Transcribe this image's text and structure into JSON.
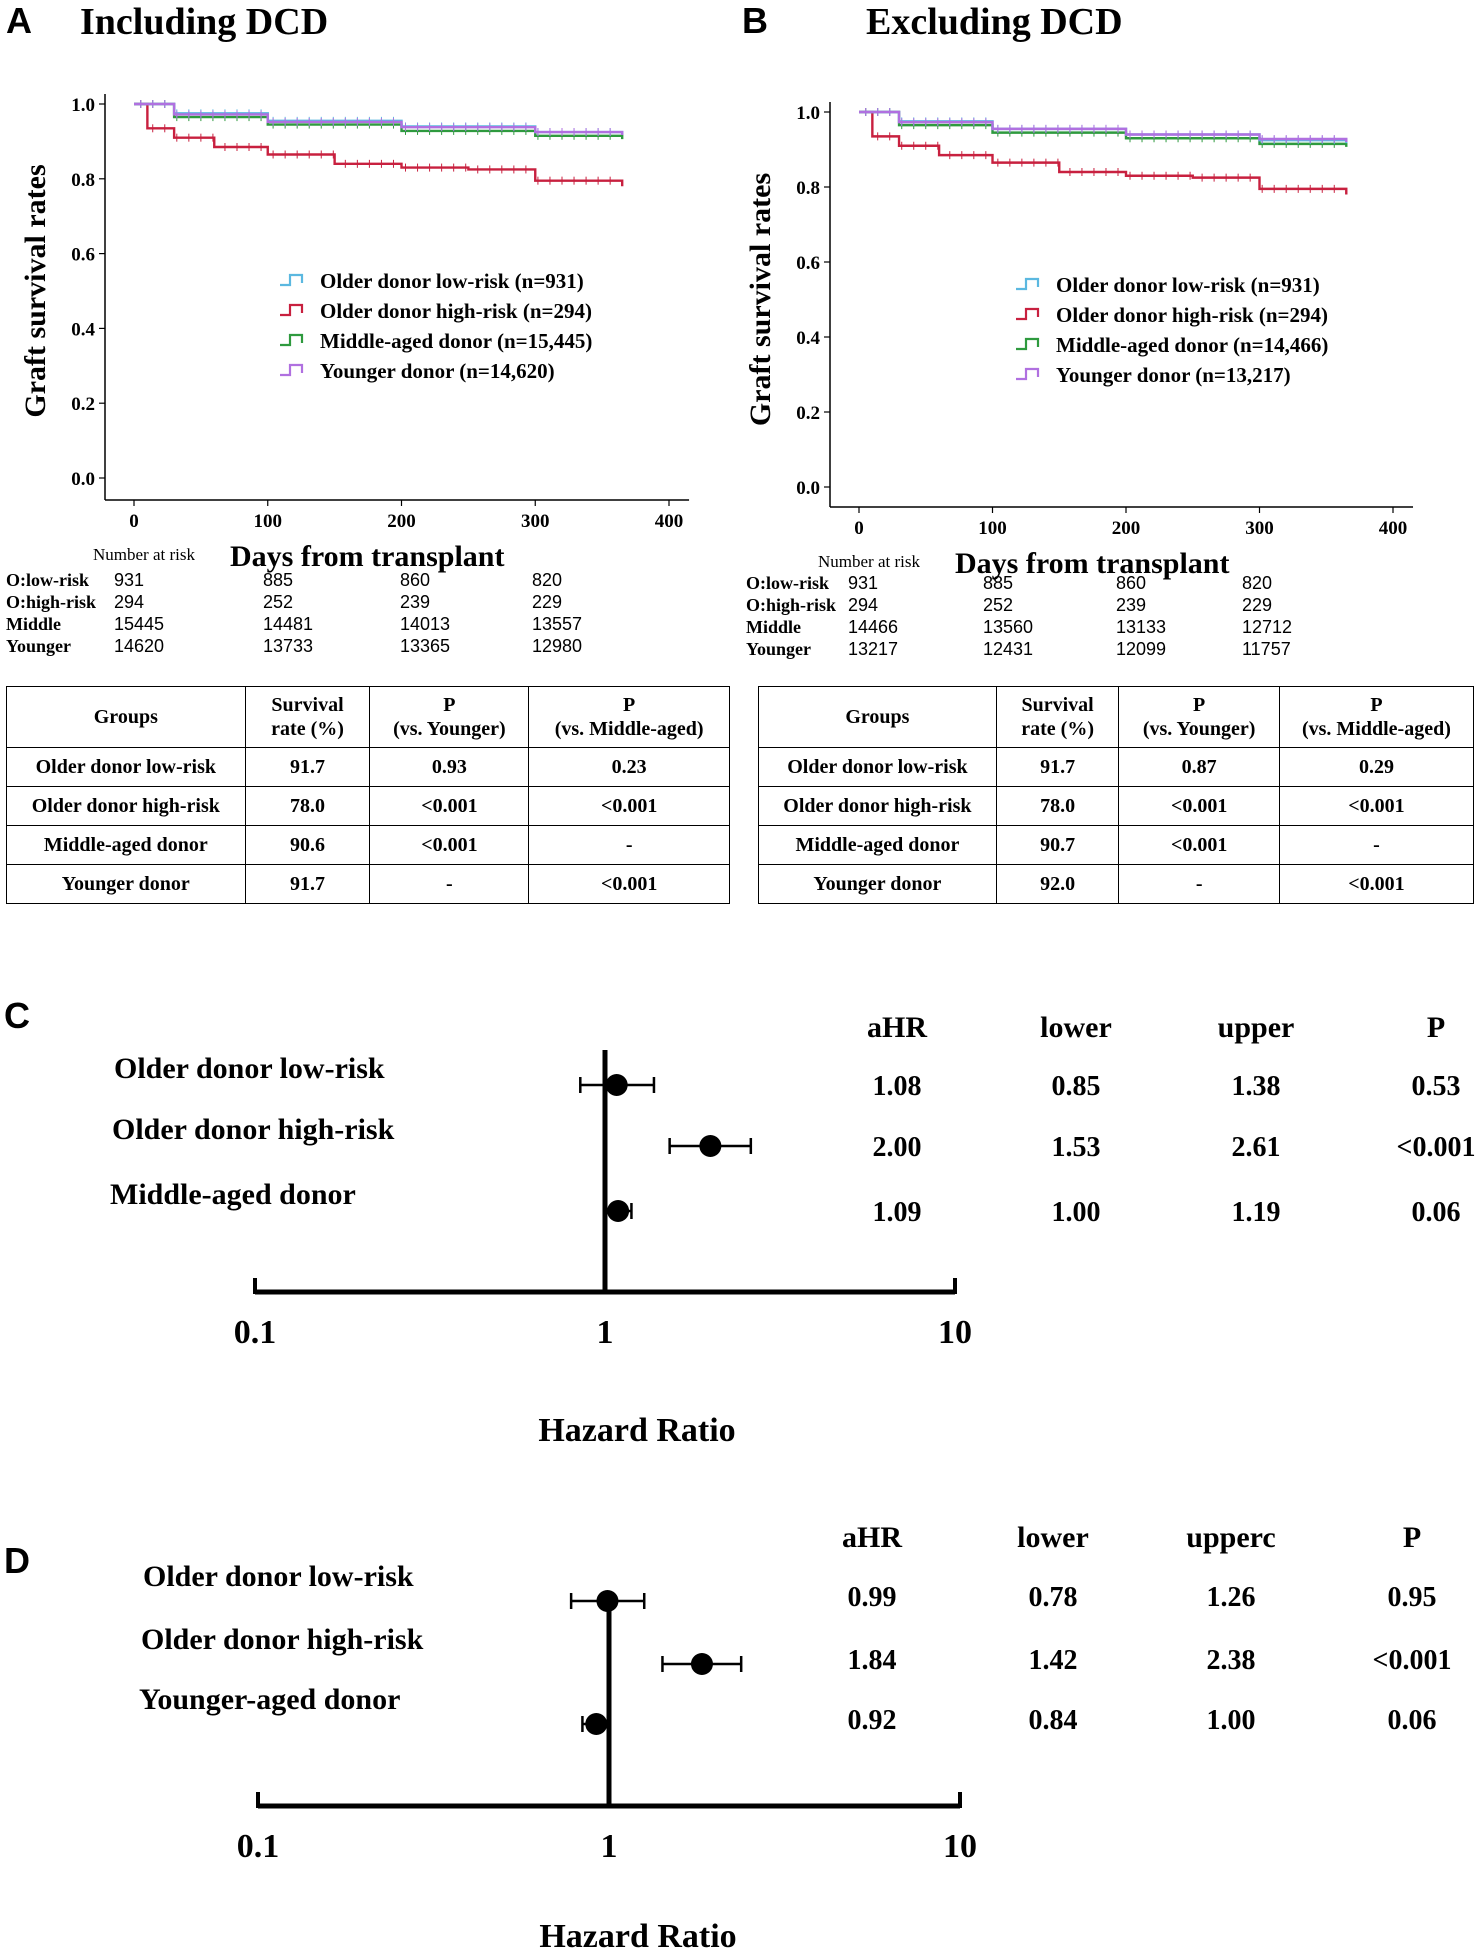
{
  "panels": {
    "A": {
      "label": "A",
      "title": "Including DCD"
    },
    "B": {
      "label": "B",
      "title": "Excluding DCD"
    },
    "C": {
      "label": "C"
    },
    "D": {
      "label": "D"
    }
  },
  "km_shared": {
    "ylabel": "Graft survival rates",
    "xlabel": "Days from transplant",
    "nrisk_label": "Number at risk",
    "yticks": [
      "0.0",
      "0.2",
      "0.4",
      "0.6",
      "0.8",
      "1.0"
    ],
    "xticks": [
      "0",
      "100",
      "200",
      "300",
      "400"
    ]
  },
  "km_A_legend": [
    "Older donor low-risk (n=931)",
    "Older donor high-risk (n=294)",
    "Middle-aged donor (n=15,445)",
    "Younger donor (n=14,620)"
  ],
  "km_B_legend": [
    "Older donor low-risk (n=931)",
    "Older donor high-risk (n=294)",
    "Middle-aged donor (n=14,466)",
    "Younger donor (n=13,217)"
  ],
  "risk_A": {
    "labels": [
      "O:low-risk",
      "O:high-risk",
      "Middle",
      "Younger"
    ],
    "rows": [
      [
        "931",
        "885",
        "860",
        "820"
      ],
      [
        "294",
        "252",
        "239",
        "229"
      ],
      [
        "15445",
        "14481",
        "14013",
        "13557"
      ],
      [
        "14620",
        "13733",
        "13365",
        "12980"
      ]
    ]
  },
  "risk_B": {
    "labels": [
      "O:low-risk",
      "O:high-risk",
      "Middle",
      "Younger"
    ],
    "rows": [
      [
        "931",
        "885",
        "860",
        "820"
      ],
      [
        "294",
        "252",
        "239",
        "229"
      ],
      [
        "14466",
        "13560",
        "13133",
        "12712"
      ],
      [
        "13217",
        "12431",
        "12099",
        "11757"
      ]
    ]
  },
  "table_headers": {
    "groups": "Groups",
    "surv1": "Survival",
    "surv2": "rate (%)",
    "p1": "P",
    "py": "(vs. Younger)",
    "pm": "(vs. Middle-aged)"
  },
  "table_A": [
    [
      "Older donor low-risk",
      "91.7",
      "0.93",
      "0.23"
    ],
    [
      "Older donor high-risk",
      "78.0",
      "<0.001",
      "<0.001"
    ],
    [
      "Middle-aged donor",
      "90.6",
      "<0.001",
      "-"
    ],
    [
      "Younger donor",
      "91.7",
      "-",
      "<0.001"
    ]
  ],
  "table_B": [
    [
      "Older donor low-risk",
      "91.7",
      "0.87",
      "0.29"
    ],
    [
      "Older donor high-risk",
      "78.0",
      "<0.001",
      "<0.001"
    ],
    [
      "Middle-aged donor",
      "90.7",
      "<0.001",
      "-"
    ],
    [
      "Younger donor",
      "92.0",
      "-",
      "<0.001"
    ]
  ],
  "forest_C_cols": [
    "aHR",
    "lower",
    "upper",
    "P"
  ],
  "forest_C_rows": [
    [
      "Older donor low-risk",
      "1.08",
      "0.85",
      "1.38",
      "0.53"
    ],
    [
      "Older donor high-risk",
      "2.00",
      "1.53",
      "2.61",
      "<0.001"
    ],
    [
      "Middle-aged donor",
      "1.09",
      "1.00",
      "1.19",
      "0.06"
    ]
  ],
  "forest_D_cols": [
    "aHR",
    "lower",
    "upperc",
    "P"
  ],
  "forest_D_rows": [
    [
      "Older donor low-risk",
      "0.99",
      "0.78",
      "1.26",
      "0.95"
    ],
    [
      "Older donor high-risk",
      "1.84",
      "1.42",
      "2.38",
      "<0.001"
    ],
    [
      "Younger-aged donor",
      "0.92",
      "0.84",
      "1.00",
      "0.06"
    ]
  ],
  "forest_axis": {
    "ticks": [
      "0.1",
      "1",
      "10"
    ],
    "xlabel": "Hazard Ratio"
  },
  "colors": {
    "low": "#5bb8e0",
    "high": "#c8203f",
    "middle": "#2e9a3e",
    "younger": "#b070e0"
  },
  "chart_data": [
    {
      "type": "line",
      "title": "Including DCD",
      "xlabel": "Days from transplant",
      "ylabel": "Graft survival rates",
      "xlim": [
        0,
        400
      ],
      "ylim": [
        0,
        1
      ],
      "series": [
        {
          "name": "Older donor low-risk",
          "color": "#5bb8e0",
          "x": [
            0,
            30,
            100,
            200,
            300,
            365
          ],
          "y": [
            1.0,
            0.975,
            0.955,
            0.94,
            0.925,
            0.917
          ]
        },
        {
          "name": "Older donor high-risk",
          "color": "#c8203f",
          "x": [
            0,
            10,
            30,
            60,
            100,
            150,
            200,
            250,
            300,
            365
          ],
          "y": [
            1.0,
            0.935,
            0.91,
            0.885,
            0.865,
            0.84,
            0.83,
            0.825,
            0.795,
            0.78
          ]
        },
        {
          "name": "Middle-aged donor",
          "color": "#2e9a3e",
          "x": [
            0,
            30,
            100,
            200,
            300,
            365
          ],
          "y": [
            1.0,
            0.965,
            0.945,
            0.928,
            0.915,
            0.906
          ]
        },
        {
          "name": "Younger donor",
          "color": "#b070e0",
          "x": [
            0,
            30,
            100,
            200,
            300,
            365
          ],
          "y": [
            1.0,
            0.972,
            0.952,
            0.938,
            0.925,
            0.917
          ]
        }
      ]
    },
    {
      "type": "line",
      "title": "Excluding DCD",
      "xlabel": "Days from transplant",
      "ylabel": "Graft survival rates",
      "xlim": [
        0,
        400
      ],
      "ylim": [
        0,
        1
      ],
      "series": [
        {
          "name": "Older donor low-risk",
          "color": "#5bb8e0",
          "x": [
            0,
            30,
            100,
            200,
            300,
            365
          ],
          "y": [
            1.0,
            0.975,
            0.955,
            0.94,
            0.925,
            0.917
          ]
        },
        {
          "name": "Older donor high-risk",
          "color": "#c8203f",
          "x": [
            0,
            10,
            30,
            60,
            100,
            150,
            200,
            250,
            300,
            365
          ],
          "y": [
            1.0,
            0.935,
            0.91,
            0.885,
            0.865,
            0.84,
            0.83,
            0.825,
            0.795,
            0.78
          ]
        },
        {
          "name": "Middle-aged donor",
          "color": "#2e9a3e",
          "x": [
            0,
            30,
            100,
            200,
            300,
            365
          ],
          "y": [
            1.0,
            0.965,
            0.945,
            0.93,
            0.915,
            0.907
          ]
        },
        {
          "name": "Younger donor",
          "color": "#b070e0",
          "x": [
            0,
            30,
            100,
            200,
            300,
            365
          ],
          "y": [
            1.0,
            0.973,
            0.955,
            0.94,
            0.928,
            0.92
          ]
        }
      ]
    },
    {
      "type": "scatter",
      "subtype": "forest",
      "xlabel": "Hazard Ratio",
      "xscale": "log",
      "xlim": [
        0.1,
        10
      ],
      "categories": [
        "Older donor low-risk",
        "Older donor high-risk",
        "Middle-aged donor"
      ],
      "values": [
        1.08,
        2.0,
        1.09
      ],
      "lower": [
        0.85,
        1.53,
        1.0
      ],
      "upper": [
        1.38,
        2.61,
        1.19
      ]
    },
    {
      "type": "scatter",
      "subtype": "forest",
      "xlabel": "Hazard Ratio",
      "xscale": "log",
      "xlim": [
        0.1,
        10
      ],
      "categories": [
        "Older donor low-risk",
        "Older donor high-risk",
        "Younger-aged donor"
      ],
      "values": [
        0.99,
        1.84,
        0.92
      ],
      "lower": [
        0.78,
        1.42,
        0.84
      ],
      "upper": [
        1.26,
        2.38,
        1.0
      ]
    }
  ]
}
